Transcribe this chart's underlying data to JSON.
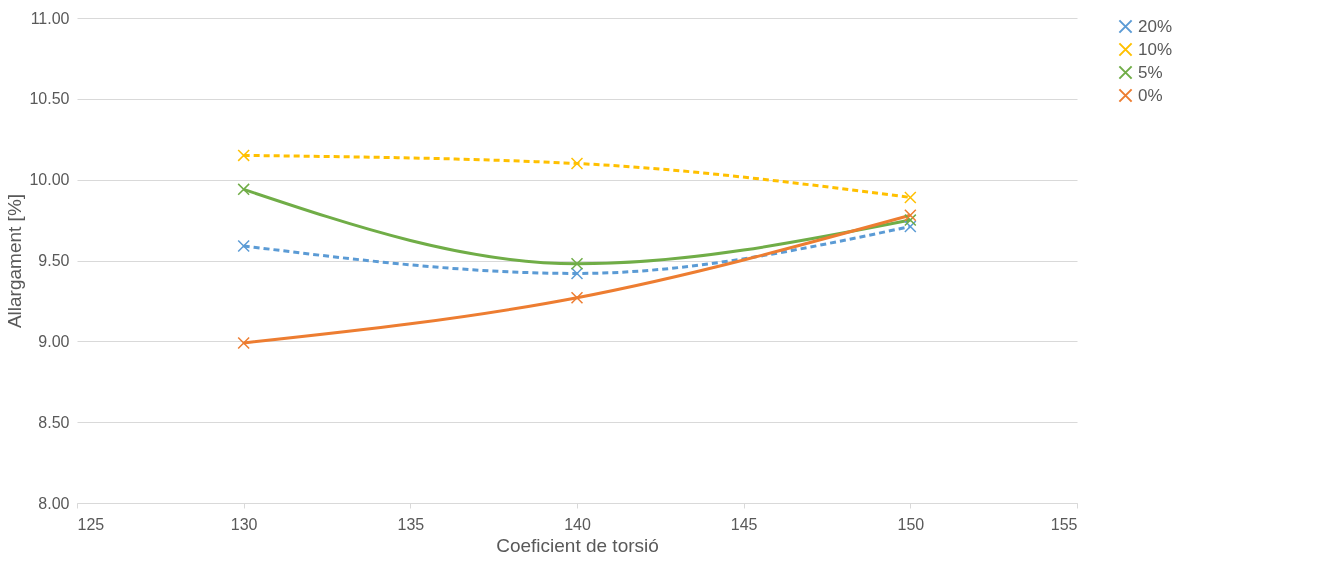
{
  "chart_data": {
    "type": "line",
    "xlabel": "Coeficient de torsió",
    "ylabel": "Allargament [%]",
    "x": [
      130,
      140,
      150
    ],
    "series": [
      {
        "name": "20%",
        "color": "#5b9bd5",
        "values": [
          9.59,
          9.42,
          9.71
        ],
        "line_style": "dashed"
      },
      {
        "name": "10%",
        "color": "#ffc000",
        "values": [
          10.15,
          10.1,
          9.89
        ],
        "line_style": "dashed"
      },
      {
        "name": "5%",
        "color": "#70ad47",
        "values": [
          9.94,
          9.48,
          9.75
        ],
        "line_style": "solid"
      },
      {
        "name": "0%",
        "color": "#ed7d31",
        "values": [
          8.99,
          9.27,
          9.78
        ],
        "line_style": "solid"
      }
    ],
    "xlim": [
      125,
      155
    ],
    "xticks": [
      125,
      130,
      135,
      140,
      145,
      150,
      155
    ],
    "ylim": [
      8.0,
      11.0
    ],
    "yticks": [
      {
        "value": 8.0,
        "label": "8.00"
      },
      {
        "value": 8.5,
        "label": "8.50"
      },
      {
        "value": 9.0,
        "label": "9.00"
      },
      {
        "value": 9.5,
        "label": "9.50"
      },
      {
        "value": 10.0,
        "label": "10.00"
      },
      {
        "value": 10.5,
        "label": "10.50"
      },
      {
        "value": 11.0,
        "label": "11.00"
      }
    ],
    "grid": "y",
    "legend": "right",
    "marker": "cross"
  }
}
